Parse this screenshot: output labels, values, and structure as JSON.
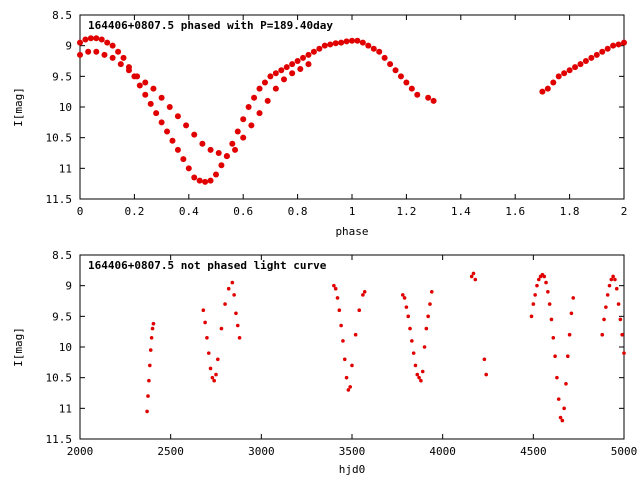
{
  "colors": {
    "points": "#e00000",
    "axes": "#000000",
    "background": "#ffffff"
  },
  "chart_data": [
    {
      "type": "scatter",
      "title": "164406+0807.5 phased with P=189.40day",
      "xlabel": "phase",
      "ylabel": "I[mag]",
      "xlim": [
        0,
        2
      ],
      "ylim": [
        11.5,
        8.5
      ],
      "y_inverted": true,
      "xticks": [
        "0",
        "0.2",
        "0.4",
        "0.6",
        "0.8",
        "1",
        "1.2",
        "1.4",
        "1.6",
        "1.8",
        "2"
      ],
      "yticks": [
        "8.5",
        "9",
        "9.5",
        "10",
        "10.5",
        "11",
        "11.5"
      ],
      "grid": false,
      "marker": "filled-circle",
      "series": [
        {
          "x": [
            0.0,
            0.02,
            0.04,
            0.06,
            0.08,
            0.1,
            0.12,
            0.14,
            0.16,
            0.18,
            0.2,
            0.22,
            0.24,
            0.26,
            0.28,
            0.3,
            0.32,
            0.34,
            0.36,
            0.38,
            0.4,
            0.42,
            0.44,
            0.46,
            0.48,
            0.5,
            0.52,
            0.54,
            0.56,
            0.58,
            0.6,
            0.62,
            0.64,
            0.66,
            0.68,
            0.7,
            0.72,
            0.74,
            0.76,
            0.78,
            0.8,
            0.82,
            0.84,
            0.86,
            0.88,
            0.9,
            0.92,
            0.94,
            0.96,
            0.98,
            1.0,
            1.02,
            1.04,
            1.06,
            1.08,
            1.1,
            1.12,
            1.14,
            1.16,
            1.18,
            1.2,
            1.22,
            1.24,
            1.28,
            1.3,
            1.7,
            1.72,
            1.74,
            1.76,
            1.78,
            1.8,
            1.82,
            1.84,
            1.86,
            1.88,
            1.9,
            1.92,
            1.94,
            1.96,
            1.98,
            2.0
          ],
          "y": [
            8.95,
            8.9,
            8.88,
            8.88,
            8.9,
            8.95,
            9.0,
            9.1,
            9.2,
            9.35,
            9.5,
            9.65,
            9.8,
            9.95,
            10.1,
            10.25,
            10.4,
            10.55,
            10.7,
            10.85,
            11.0,
            11.15,
            11.2,
            11.22,
            11.2,
            11.1,
            10.95,
            10.8,
            10.6,
            10.4,
            10.2,
            10.0,
            9.85,
            9.7,
            9.6,
            9.5,
            9.45,
            9.4,
            9.35,
            9.3,
            9.25,
            9.2,
            9.15,
            9.1,
            9.05,
            9.0,
            8.98,
            8.96,
            8.95,
            8.93,
            8.92,
            8.92,
            8.95,
            9.0,
            9.05,
            9.1,
            9.2,
            9.3,
            9.4,
            9.5,
            9.6,
            9.7,
            9.8,
            9.85,
            9.9,
            9.75,
            9.7,
            9.6,
            9.5,
            9.45,
            9.4,
            9.35,
            9.3,
            9.25,
            9.2,
            9.15,
            9.1,
            9.05,
            9.0,
            8.98,
            8.95
          ]
        },
        {
          "x": [
            0.0,
            0.03,
            0.06,
            0.09,
            0.12,
            0.15,
            0.18,
            0.21,
            0.24,
            0.27,
            0.3,
            0.33,
            0.36,
            0.39,
            0.42,
            0.45,
            0.48,
            0.51,
            0.54,
            0.57,
            0.6,
            0.63,
            0.66,
            0.69,
            0.72,
            0.75,
            0.78,
            0.81,
            0.84
          ],
          "y": [
            9.15,
            9.1,
            9.1,
            9.15,
            9.2,
            9.3,
            9.4,
            9.5,
            9.6,
            9.7,
            9.85,
            10.0,
            10.15,
            10.3,
            10.45,
            10.6,
            10.7,
            10.75,
            10.8,
            10.7,
            10.5,
            10.3,
            10.1,
            9.9,
            9.7,
            9.55,
            9.45,
            9.38,
            9.3
          ]
        }
      ]
    },
    {
      "type": "scatter",
      "title": "164406+0807.5 not phased light curve",
      "xlabel": "hjd0",
      "ylabel": "I[mag]",
      "xlim": [
        2000,
        5000
      ],
      "ylim": [
        11.5,
        8.5
      ],
      "y_inverted": true,
      "xticks": [
        "2000",
        "2500",
        "3000",
        "3500",
        "4000",
        "4500",
        "5000"
      ],
      "yticks": [
        "8.5",
        "9",
        "9.5",
        "10",
        "10.5",
        "11",
        "11.5"
      ],
      "grid": false,
      "marker": "small-dot",
      "series": [
        {
          "x": [
            2370,
            2375,
            2380,
            2385,
            2390,
            2395,
            2400,
            2405,
            2680,
            2690,
            2700,
            2710,
            2720,
            2730,
            2740,
            2750,
            2760,
            2780,
            2800,
            2820,
            2840,
            2850,
            2860,
            2870,
            2880,
            3400,
            3410,
            3420,
            3430,
            3440,
            3450,
            3460,
            3470,
            3480,
            3490,
            3500,
            3520,
            3540,
            3560,
            3570,
            3780,
            3790,
            3800,
            3810,
            3820,
            3830,
            3840,
            3850,
            3860,
            3870,
            3880,
            3890,
            3900,
            3910,
            3920,
            3930,
            3940,
            4160,
            4170,
            4180,
            4230,
            4240,
            4490,
            4500,
            4510,
            4520,
            4530,
            4540,
            4550,
            4560,
            4570,
            4580,
            4590,
            4600,
            4610,
            4620,
            4630,
            4640,
            4650,
            4660,
            4670,
            4680,
            4690,
            4700,
            4710,
            4720,
            4880,
            4890,
            4900,
            4910,
            4920,
            4930,
            4940,
            4950,
            4960,
            4970,
            4980,
            4990,
            5000
          ],
          "y": [
            11.05,
            10.8,
            10.55,
            10.3,
            10.05,
            9.85,
            9.7,
            9.62,
            9.4,
            9.6,
            9.85,
            10.1,
            10.35,
            10.5,
            10.55,
            10.45,
            10.2,
            9.7,
            9.3,
            9.05,
            8.95,
            9.15,
            9.45,
            9.65,
            9.85,
            9.0,
            9.05,
            9.2,
            9.4,
            9.65,
            9.9,
            10.2,
            10.5,
            10.7,
            10.65,
            10.3,
            9.8,
            9.4,
            9.15,
            9.1,
            9.15,
            9.2,
            9.35,
            9.5,
            9.7,
            9.9,
            10.1,
            10.3,
            10.45,
            10.5,
            10.55,
            10.4,
            10.0,
            9.7,
            9.5,
            9.3,
            9.1,
            8.85,
            8.8,
            8.9,
            10.2,
            10.45,
            9.5,
            9.3,
            9.15,
            9.0,
            8.9,
            8.85,
            8.82,
            8.85,
            8.95,
            9.1,
            9.3,
            9.55,
            9.85,
            10.15,
            10.5,
            10.85,
            11.15,
            11.2,
            11.0,
            10.6,
            10.15,
            9.8,
            9.45,
            9.2,
            9.8,
            9.55,
            9.35,
            9.15,
            9.0,
            8.9,
            8.85,
            8.9,
            9.05,
            9.3,
            9.55,
            9.8,
            10.1
          ]
        }
      ]
    }
  ]
}
